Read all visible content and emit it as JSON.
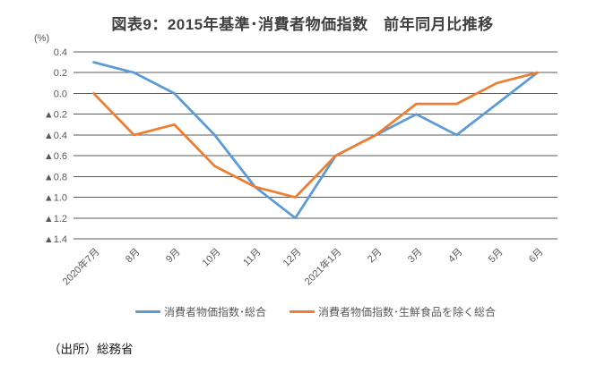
{
  "title": "図表9：2015年基準･消費者物価指数　前年同月比推移",
  "source": "（出所）総務省",
  "chart_data": {
    "type": "line",
    "title": "図表9：2015年基準･消費者物価指数　前年同月比推移",
    "unit_label": "(%)",
    "categories": [
      "2020年7月",
      "8月",
      "9月",
      "10月",
      "11月",
      "12月",
      "2021年1月",
      "2月",
      "3月",
      "4月",
      "5月",
      "6月"
    ],
    "series": [
      {
        "name": "消費者物価指数･総合",
        "color": "#5B9BD5",
        "values": [
          0.3,
          0.2,
          0.0,
          -0.4,
          -0.9,
          -1.2,
          -0.6,
          -0.4,
          -0.2,
          -0.4,
          -0.1,
          0.2
        ]
      },
      {
        "name": "消費者物価指数･生鮮食品を除く総合",
        "color": "#ED7D31",
        "values": [
          0.0,
          -0.4,
          -0.3,
          -0.7,
          -0.9,
          -1.0,
          -0.6,
          -0.4,
          -0.1,
          -0.1,
          0.1,
          0.2
        ]
      }
    ],
    "ylim": [
      -1.4,
      0.4
    ],
    "ytick_step": 0.2,
    "ytick_labels": [
      "0.4",
      "0.2",
      "0.0",
      "▲0.2",
      "▲0.4",
      "▲0.6",
      "▲0.8",
      "▲1.0",
      "▲1.2",
      "▲1.4"
    ],
    "negative_marker": "▲",
    "grid": true,
    "gridline_color": "#595959",
    "legend_position": "bottom"
  }
}
